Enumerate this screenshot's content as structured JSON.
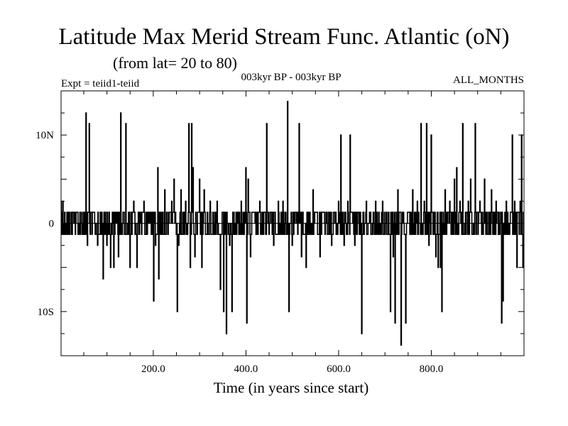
{
  "header": {
    "title": "Latitude Max Merid Stream Func. Atlantic (oN)",
    "subtitle": "(from lat= 20 to 80)",
    "experiment": "Expt = teiid1-teiid",
    "period": "003kyr BP - 003kyr BP",
    "months": "ALL_MONTHS"
  },
  "chart_data": {
    "type": "line",
    "title": "Latitude Max Merid Stream Func. Atlantic (oN)",
    "xlabel": "Time (in years since start)",
    "ylabel": "",
    "xlim": [
      1,
      1000
    ],
    "ylim": [
      -15,
      15
    ],
    "x_ticks": [
      {
        "value": 200,
        "label": "200.0"
      },
      {
        "value": 400,
        "label": "400.0"
      },
      {
        "value": 600,
        "label": "600.0"
      },
      {
        "value": 800,
        "label": "800.0"
      }
    ],
    "y_ticks": [
      {
        "value": 10,
        "label": "10N"
      },
      {
        "value": 0,
        "label": "0"
      },
      {
        "value": -10,
        "label": "10S"
      }
    ],
    "series": [
      {
        "name": "",
        "baseline_level": 1.25,
        "spikes": [
          {
            "x": 1,
            "y": 2.5
          },
          {
            "x": 5,
            "y": 2.5
          },
          {
            "x": 55,
            "y": 12.5
          },
          {
            "x": 58,
            "y": -2.5
          },
          {
            "x": 62,
            "y": 11.3
          },
          {
            "x": 80,
            "y": -2.5
          },
          {
            "x": 92,
            "y": -6.3
          },
          {
            "x": 100,
            "y": -2.5
          },
          {
            "x": 108,
            "y": -5
          },
          {
            "x": 115,
            "y": -5
          },
          {
            "x": 125,
            "y": -3.8
          },
          {
            "x": 130,
            "y": 12.5
          },
          {
            "x": 141,
            "y": 11.3
          },
          {
            "x": 150,
            "y": -5
          },
          {
            "x": 158,
            "y": 2.5
          },
          {
            "x": 165,
            "y": -5
          },
          {
            "x": 180,
            "y": 2.5
          },
          {
            "x": 200,
            "y": 1.25
          },
          {
            "x": 201,
            "y": -8.8
          },
          {
            "x": 205,
            "y": -2.5
          },
          {
            "x": 210,
            "y": 6.3
          },
          {
            "x": 212,
            "y": -6.3
          },
          {
            "x": 225,
            "y": 3.8
          },
          {
            "x": 240,
            "y": 2.5
          },
          {
            "x": 245,
            "y": 5
          },
          {
            "x": 252,
            "y": -10
          },
          {
            "x": 255,
            "y": -2.5
          },
          {
            "x": 260,
            "y": 3.8
          },
          {
            "x": 270,
            "y": 2.5
          },
          {
            "x": 277,
            "y": 11.3
          },
          {
            "x": 280,
            "y": -5
          },
          {
            "x": 283,
            "y": 11.3
          },
          {
            "x": 286,
            "y": 6.3
          },
          {
            "x": 290,
            "y": -3.8
          },
          {
            "x": 300,
            "y": 5
          },
          {
            "x": 305,
            "y": -5
          },
          {
            "x": 310,
            "y": 3.8
          },
          {
            "x": 323,
            "y": 2.5
          },
          {
            "x": 338,
            "y": 2.5
          },
          {
            "x": 345,
            "y": -7.5
          },
          {
            "x": 352,
            "y": -10
          },
          {
            "x": 358,
            "y": -12.5
          },
          {
            "x": 365,
            "y": -2.5
          },
          {
            "x": 370,
            "y": -10
          },
          {
            "x": 390,
            "y": 2.5
          },
          {
            "x": 400,
            "y": 6.3
          },
          {
            "x": 402,
            "y": -11.3
          },
          {
            "x": 405,
            "y": 5
          },
          {
            "x": 410,
            "y": -3.8
          },
          {
            "x": 430,
            "y": 2.5
          },
          {
            "x": 445,
            "y": 11.3
          },
          {
            "x": 460,
            "y": -2.5
          },
          {
            "x": 470,
            "y": 2.5
          },
          {
            "x": 480,
            "y": 2.5
          },
          {
            "x": 490,
            "y": 13.8
          },
          {
            "x": 493,
            "y": -10
          },
          {
            "x": 500,
            "y": -2.5
          },
          {
            "x": 515,
            "y": 11.3
          },
          {
            "x": 520,
            "y": -3.8
          },
          {
            "x": 530,
            "y": -5
          },
          {
            "x": 545,
            "y": 3.8
          },
          {
            "x": 560,
            "y": -3.8
          },
          {
            "x": 585,
            "y": -2.5
          },
          {
            "x": 600,
            "y": 2.5
          },
          {
            "x": 605,
            "y": 10
          },
          {
            "x": 612,
            "y": -2.5
          },
          {
            "x": 620,
            "y": 2.5
          },
          {
            "x": 625,
            "y": 10
          },
          {
            "x": 635,
            "y": -2.5
          },
          {
            "x": 650,
            "y": -12.5
          },
          {
            "x": 660,
            "y": 2.5
          },
          {
            "x": 670,
            "y": -1.25
          },
          {
            "x": 680,
            "y": 2.5
          },
          {
            "x": 695,
            "y": 2.5
          },
          {
            "x": 705,
            "y": -1.25
          },
          {
            "x": 712,
            "y": -10
          },
          {
            "x": 718,
            "y": -3.8
          },
          {
            "x": 722,
            "y": -11.3
          },
          {
            "x": 728,
            "y": 3.8
          },
          {
            "x": 735,
            "y": -13.8
          },
          {
            "x": 745,
            "y": -11.3
          },
          {
            "x": 760,
            "y": 3.8
          },
          {
            "x": 770,
            "y": 2.5
          },
          {
            "x": 778,
            "y": 11.3
          },
          {
            "x": 785,
            "y": 2.5
          },
          {
            "x": 790,
            "y": 11.3
          },
          {
            "x": 795,
            "y": -2.5
          },
          {
            "x": 800,
            "y": 10
          },
          {
            "x": 810,
            "y": -3.8
          },
          {
            "x": 815,
            "y": -5
          },
          {
            "x": 820,
            "y": -5
          },
          {
            "x": 823,
            "y": -10
          },
          {
            "x": 830,
            "y": 3.8
          },
          {
            "x": 840,
            "y": 2.5
          },
          {
            "x": 850,
            "y": 5
          },
          {
            "x": 855,
            "y": 6.3
          },
          {
            "x": 862,
            "y": 2.5
          },
          {
            "x": 868,
            "y": 11.3
          },
          {
            "x": 880,
            "y": 2.5
          },
          {
            "x": 885,
            "y": 5
          },
          {
            "x": 895,
            "y": 11.3
          },
          {
            "x": 905,
            "y": 2.5
          },
          {
            "x": 915,
            "y": 5
          },
          {
            "x": 922,
            "y": -1.25
          },
          {
            "x": 930,
            "y": 3.8
          },
          {
            "x": 940,
            "y": 2.5
          },
          {
            "x": 952,
            "y": -11.3
          },
          {
            "x": 955,
            "y": -8.8
          },
          {
            "x": 962,
            "y": 2.5
          },
          {
            "x": 975,
            "y": 10
          },
          {
            "x": 980,
            "y": 2.5
          },
          {
            "x": 985,
            "y": -5
          },
          {
            "x": 992,
            "y": 2.5
          },
          {
            "x": 995,
            "y": 10
          },
          {
            "x": 998,
            "y": -5
          }
        ]
      }
    ]
  }
}
